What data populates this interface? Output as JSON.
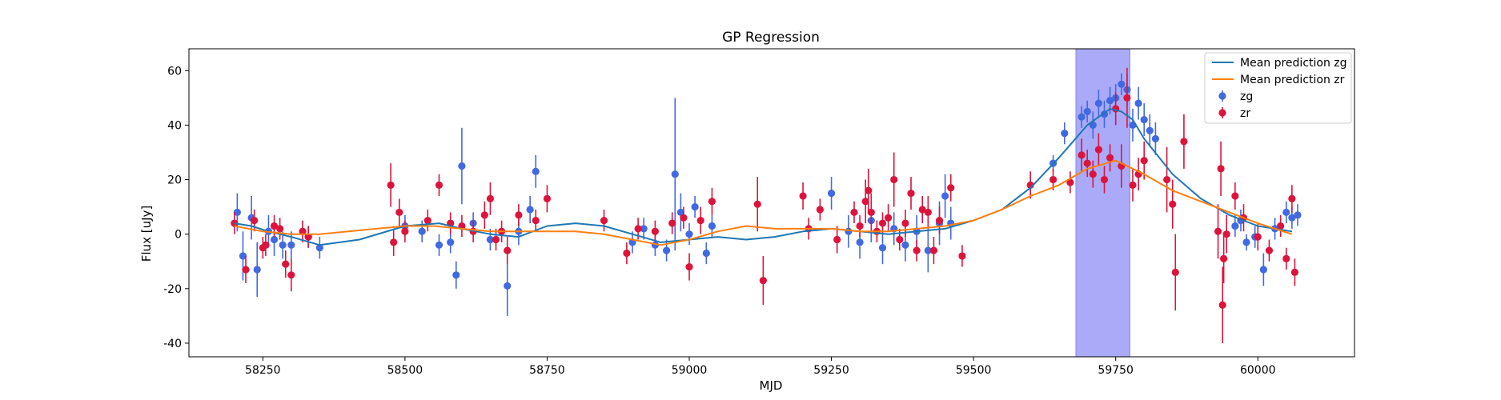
{
  "chart_data": {
    "type": "scatter",
    "title": "GP Regression",
    "xlabel": "MJD",
    "ylabel": "Flux [uJy]",
    "xlim": [
      58120,
      60170
    ],
    "ylim": [
      -45,
      68
    ],
    "xticks": [
      58250,
      58500,
      58750,
      59000,
      59250,
      59500,
      59750,
      60000
    ],
    "yticks": [
      -40,
      -20,
      0,
      20,
      40,
      60
    ],
    "grid": false,
    "legend_position": "top-right",
    "shaded_region": {
      "x0": 59680,
      "x1": 59775,
      "color": "#aaaaf8"
    },
    "series": [
      {
        "name": "Mean prediction zg",
        "kind": "line",
        "color": "#1f77b4",
        "x": [
          58200,
          58230,
          58260,
          58300,
          58350,
          58420,
          58500,
          58560,
          58600,
          58650,
          58700,
          58750,
          58800,
          58850,
          58900,
          58950,
          59000,
          59050,
          59100,
          59150,
          59200,
          59250,
          59300,
          59350,
          59400,
          59450,
          59500,
          59550,
          59600,
          59650,
          59700,
          59720,
          59740,
          59760,
          59780,
          59800,
          59850,
          59900,
          59950,
          60000,
          60060
        ],
        "values": [
          4,
          3,
          1,
          -1,
          -4,
          -2,
          3,
          4,
          2,
          0,
          -1,
          3,
          4,
          3,
          0,
          -3,
          -2,
          -1,
          -2,
          -1,
          1,
          2,
          1,
          0,
          1,
          2,
          5,
          9,
          17,
          28,
          40,
          43,
          46,
          45,
          42,
          35,
          22,
          13,
          7,
          3,
          1
        ]
      },
      {
        "name": "Mean prediction zr",
        "kind": "line",
        "color": "#ff7f0e",
        "x": [
          58200,
          58250,
          58300,
          58350,
          58400,
          58450,
          58500,
          58550,
          58600,
          58650,
          58700,
          58750,
          58800,
          58850,
          58900,
          58950,
          59000,
          59050,
          59100,
          59150,
          59200,
          59250,
          59300,
          59350,
          59400,
          59450,
          59500,
          59550,
          59600,
          59650,
          59700,
          59750,
          59800,
          59850,
          59900,
          59950,
          60000,
          60060
        ],
        "values": [
          3,
          1,
          0,
          0,
          1,
          2,
          3,
          3,
          2,
          1,
          1,
          1,
          1,
          0,
          -2,
          -4,
          -2,
          1,
          3,
          2,
          2,
          2,
          1,
          1,
          2,
          3,
          5,
          9,
          14,
          18,
          24,
          27,
          22,
          16,
          12,
          8,
          4,
          0
        ]
      },
      {
        "name": "zg",
        "kind": "errorbar",
        "color": "#4169e1",
        "x": [
          58205,
          58215,
          58230,
          58240,
          58260,
          58270,
          58285,
          58300,
          58330,
          58350,
          58500,
          58530,
          58560,
          58580,
          58590,
          58600,
          58620,
          58650,
          58680,
          58700,
          58720,
          58730,
          58900,
          58920,
          58940,
          58960,
          58975,
          58985,
          59000,
          59010,
          59030,
          59040,
          59250,
          59280,
          59300,
          59320,
          59340,
          59360,
          59380,
          59400,
          59420,
          59440,
          59450,
          59460,
          59640,
          59660,
          59690,
          59700,
          59710,
          59720,
          59730,
          59740,
          59750,
          59760,
          59770,
          59780,
          59790,
          59800,
          59810,
          59820,
          59960,
          59970,
          59980,
          59995,
          60010,
          60030,
          60050,
          60060,
          60070
        ],
        "y": [
          8,
          -8,
          6,
          -13,
          1,
          -2,
          -4,
          -4,
          -1,
          -5,
          3,
          1,
          -4,
          -3,
          -15,
          25,
          4,
          -2,
          -19,
          1,
          9,
          23,
          -3,
          2,
          -4,
          -6,
          22,
          8,
          0,
          10,
          -7,
          3,
          15,
          1,
          -3,
          5,
          -5,
          2,
          -4,
          1,
          -6,
          4,
          14,
          4,
          26,
          37,
          43,
          45,
          40,
          48,
          44,
          49,
          50,
          55,
          53,
          40,
          48,
          42,
          38,
          35,
          3,
          5,
          -3,
          -1,
          -13,
          2,
          8,
          6,
          7
        ],
        "err": [
          7,
          9,
          8,
          10,
          6,
          6,
          5,
          5,
          4,
          4,
          4,
          4,
          4,
          4,
          5,
          14,
          4,
          4,
          11,
          5,
          5,
          6,
          4,
          4,
          4,
          4,
          28,
          7,
          4,
          4,
          4,
          4,
          6,
          6,
          6,
          8,
          6,
          6,
          6,
          6,
          8,
          8,
          8,
          6,
          3,
          4,
          4,
          4,
          5,
          5,
          5,
          5,
          5,
          4,
          6,
          6,
          6,
          6,
          6,
          6,
          4,
          4,
          3,
          4,
          6,
          4,
          4,
          4,
          4
        ]
      },
      {
        "name": "zr",
        "kind": "errorbar",
        "color": "#dc143c",
        "x": [
          58200,
          58220,
          58235,
          58250,
          58255,
          58270,
          58280,
          58290,
          58300,
          58320,
          58330,
          58475,
          58480,
          58490,
          58500,
          58540,
          58560,
          58580,
          58600,
          58620,
          58640,
          58650,
          58660,
          58670,
          58680,
          58700,
          58730,
          58750,
          58850,
          58890,
          58910,
          58940,
          58970,
          58990,
          59000,
          59020,
          59040,
          59120,
          59130,
          59200,
          59210,
          59230,
          59260,
          59290,
          59300,
          59310,
          59315,
          59320,
          59330,
          59340,
          59350,
          59360,
          59370,
          59380,
          59390,
          59400,
          59410,
          59420,
          59430,
          59440,
          59460,
          59480,
          59600,
          59640,
          59670,
          59690,
          59700,
          59710,
          59720,
          59730,
          59740,
          59750,
          59760,
          59770,
          59780,
          59790,
          59800,
          59840,
          59850,
          59855,
          59870,
          59930,
          59935,
          59938,
          59940,
          59945,
          59960,
          59975,
          60000,
          60020,
          60040,
          60050,
          60060,
          60065
        ],
        "y": [
          4,
          -13,
          5,
          -5,
          -4,
          3,
          2,
          -11,
          -15,
          1,
          -1,
          18,
          -3,
          8,
          1,
          5,
          18,
          4,
          3,
          1,
          7,
          13,
          -2,
          1,
          -6,
          7,
          5,
          13,
          5,
          -7,
          2,
          1,
          4,
          6,
          -12,
          5,
          12,
          11,
          -17,
          14,
          2,
          9,
          -2,
          8,
          3,
          12,
          16,
          8,
          1,
          4,
          6,
          20,
          -2,
          4,
          15,
          -6,
          9,
          8,
          -6,
          5,
          17,
          -8,
          18,
          20,
          19,
          29,
          26,
          22,
          31,
          20,
          28,
          46,
          25,
          50,
          18,
          22,
          27,
          20,
          11,
          -14,
          34,
          1,
          24,
          -26,
          -9,
          0,
          14,
          6,
          -1,
          -6,
          3,
          -9,
          13,
          -14
        ],
        "err": [
          4,
          5,
          4,
          4,
          4,
          4,
          4,
          5,
          6,
          4,
          4,
          8,
          5,
          5,
          4,
          4,
          4,
          4,
          4,
          4,
          5,
          6,
          4,
          4,
          5,
          4,
          4,
          5,
          4,
          4,
          4,
          4,
          4,
          4,
          5,
          5,
          5,
          10,
          9,
          5,
          4,
          4,
          5,
          4,
          4,
          8,
          8,
          7,
          4,
          4,
          5,
          10,
          4,
          5,
          6,
          4,
          5,
          6,
          5,
          5,
          5,
          4,
          5,
          4,
          4,
          6,
          5,
          5,
          6,
          5,
          5,
          6,
          8,
          11,
          6,
          6,
          7,
          12,
          9,
          14,
          10,
          10,
          10,
          14,
          9,
          7,
          5,
          5,
          5,
          4,
          4,
          4,
          5,
          5
        ]
      }
    ]
  }
}
